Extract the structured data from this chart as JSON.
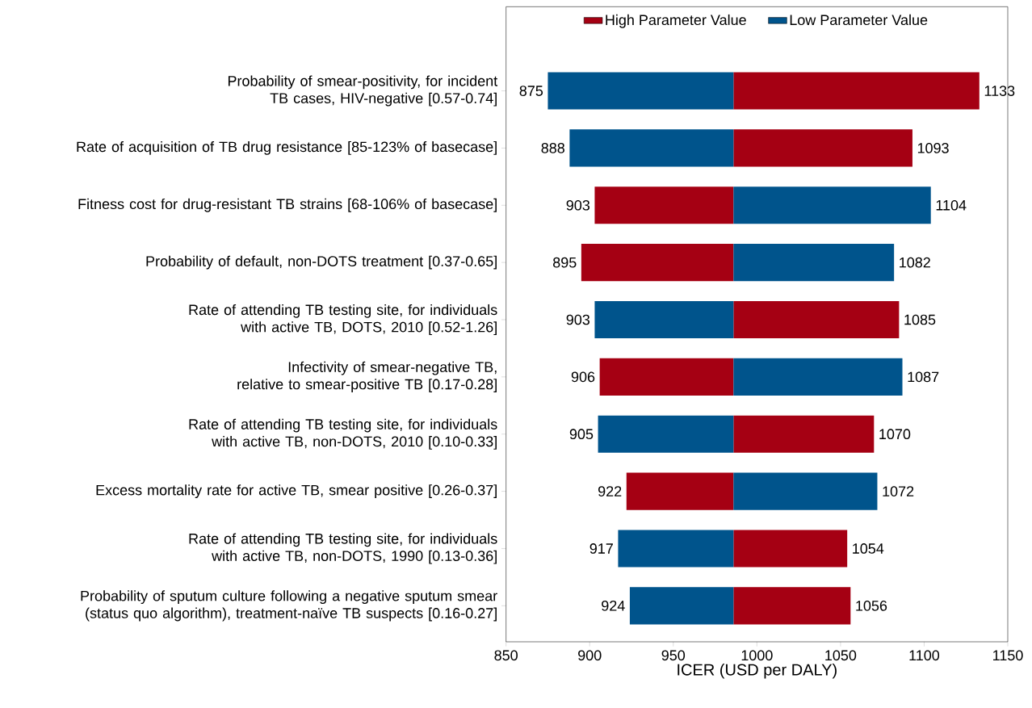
{
  "chart_data": {
    "type": "bar",
    "orientation": "horizontal",
    "xlabel": "ICER (USD per DALY)",
    "categories": [
      "Probability of smear-positivity, for incident TB cases, HIV-negative [0.57-0.74]",
      "Rate of acquisition of TB drug resistance [85-123% of basecase]",
      "Fitness cost for drug-resistant TB strains [68-106% of basecase]",
      "Probability of default, non-DOTS treatment [0.37-0.65]",
      "Rate of attending TB testing site, for individuals with active TB, DOTS, 2010 [0.52-1.26]",
      "Infectivity of smear-negative TB, relative to smear-positive TB [0.17-0.28]",
      "Rate of attending TB testing site, for individuals with active TB, non-DOTS, 2010 [0.10-0.33]",
      "Excess mortality rate for active TB, smear positive [0.26-0.37]",
      "Rate of attending TB testing site, for individuals with active TB, non-DOTS, 1990 [0.13-0.36]",
      "Probability of sputum culture following a negative sputum smear (status quo algorithm), treatment-naïve TB suspects [0.16-0.27]"
    ],
    "series": [
      {
        "name": "High Parameter Value",
        "color": "#a50013",
        "base": [
          986,
          986,
          986,
          986,
          986,
          986,
          986,
          986,
          986,
          986
        ],
        "values": [
          147,
          107,
          -83,
          -91,
          99,
          -80,
          84,
          -64,
          68,
          70
        ],
        "value_labels": [
          "1133",
          "1093",
          "903",
          "895",
          "1085",
          "906",
          "1070",
          "922",
          "1054",
          "1056"
        ]
      },
      {
        "name": "Low Parameter Value",
        "color": "#00548c",
        "base": [
          986,
          986,
          986,
          986,
          986,
          986,
          986,
          986,
          986,
          986
        ],
        "values": [
          -111,
          -98,
          118,
          96,
          -83,
          101,
          -81,
          86,
          -69,
          -62
        ],
        "value_labels": [
          "875",
          "888",
          "1104",
          "1082",
          "903",
          "1087",
          "905",
          "1072",
          "917",
          "924"
        ]
      }
    ],
    "xlim": [
      850,
      1150
    ],
    "xticks": [
      850,
      900,
      950,
      1000,
      1050,
      1100,
      1150
    ],
    "legend": "top",
    "grid": false
  }
}
